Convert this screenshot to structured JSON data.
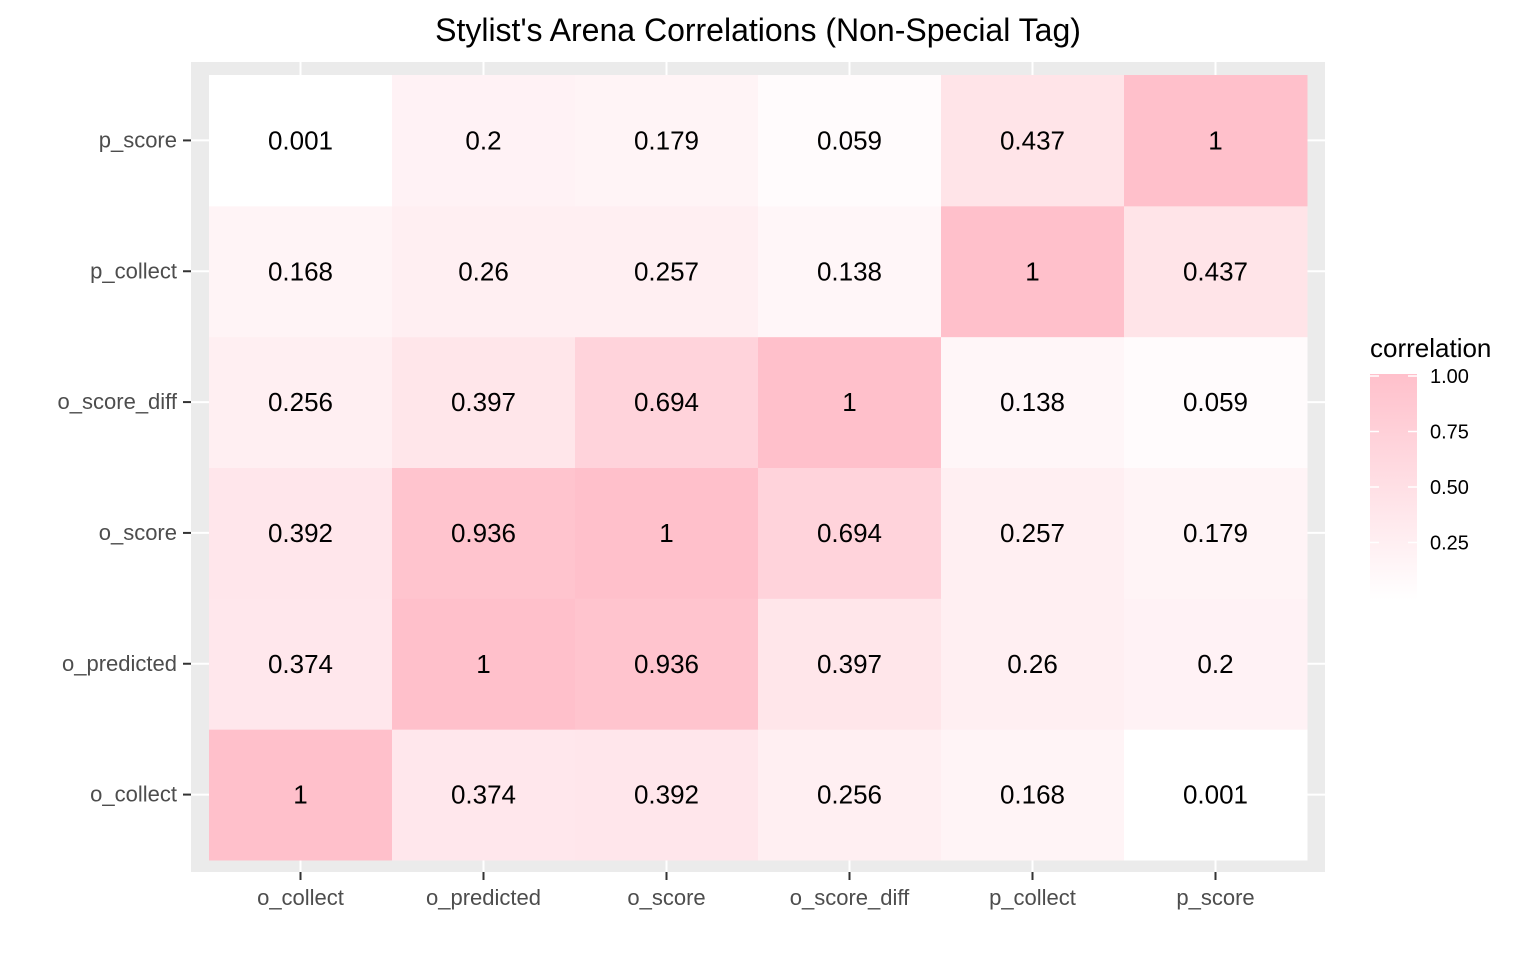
{
  "chart_data": {
    "type": "heatmap",
    "title": "Stylist's Arena Correlations (Non-Special Tag)",
    "x_categories": [
      "o_collect",
      "o_predicted",
      "o_score",
      "o_score_diff",
      "p_collect",
      "p_score"
    ],
    "y_categories": [
      "o_collect",
      "o_predicted",
      "o_score",
      "o_score_diff",
      "p_collect",
      "p_score"
    ],
    "values": [
      [
        1,
        0.374,
        0.392,
        0.256,
        0.168,
        0.001
      ],
      [
        0.374,
        1,
        0.936,
        0.397,
        0.26,
        0.2
      ],
      [
        0.392,
        0.936,
        1,
        0.694,
        0.257,
        0.179
      ],
      [
        0.256,
        0.397,
        0.694,
        1,
        0.138,
        0.059
      ],
      [
        0.168,
        0.26,
        0.257,
        0.138,
        1,
        0.437
      ],
      [
        0.001,
        0.2,
        0.179,
        0.059,
        0.437,
        1
      ]
    ],
    "labels": [
      [
        "1",
        "0.374",
        "0.392",
        "0.256",
        "0.168",
        "0.001"
      ],
      [
        "0.374",
        "1",
        "0.936",
        "0.397",
        "0.26",
        "0.2"
      ],
      [
        "0.392",
        "0.936",
        "1",
        "0.694",
        "0.257",
        "0.179"
      ],
      [
        "0.256",
        "0.397",
        "0.694",
        "1",
        "0.138",
        "0.059"
      ],
      [
        "0.168",
        "0.26",
        "0.257",
        "0.138",
        "1",
        "0.437"
      ],
      [
        "0.001",
        "0.2",
        "0.179",
        "0.059",
        "0.437",
        "1"
      ]
    ],
    "legend": {
      "title": "correlation",
      "ticks": [
        1.0,
        0.75,
        0.5,
        0.25
      ],
      "tick_labels": [
        "1.00",
        "0.75",
        "0.50",
        "0.25"
      ],
      "range": [
        0.001,
        1
      ],
      "low_color": "#ffffff",
      "high_color": "#ffc0cb",
      "placement": "right"
    },
    "grid": true,
    "panel_background": "#ebebeb"
  }
}
